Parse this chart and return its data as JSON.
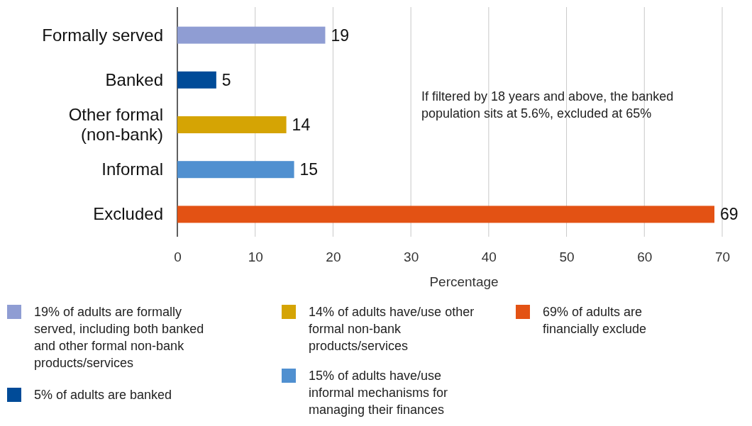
{
  "chart_data": {
    "type": "bar",
    "orientation": "horizontal",
    "categories": [
      "Formally served",
      "Banked",
      "Other formal\n(non-bank)",
      "Informal",
      "Excluded"
    ],
    "series": [
      {
        "name": "19% of adults are formally served, including both banked and other formal non-bank products/services",
        "color": "#8f9dd3",
        "values": [
          19,
          null,
          null,
          null,
          null
        ]
      },
      {
        "name": "5% of adults are banked",
        "color": "#004b98",
        "values": [
          null,
          5,
          null,
          null,
          null
        ]
      },
      {
        "name": "14% of adults have/use other formal non-bank products/services",
        "color": "#d5a404",
        "values": [
          null,
          null,
          14,
          null,
          null
        ]
      },
      {
        "name": "15% of adults have/use informal mechanisms for managing their finances",
        "color": "#5090d0",
        "values": [
          null,
          null,
          null,
          15,
          null
        ]
      },
      {
        "name": "69% of adults are financially exclude",
        "color": "#e35214",
        "values": [
          null,
          null,
          null,
          null,
          69
        ]
      }
    ],
    "xlim": [
      0,
      70
    ],
    "xticks": [
      0,
      10,
      20,
      30,
      40,
      50,
      60,
      70
    ],
    "xlabel": "Percentage",
    "grid": "x",
    "data_labels": true,
    "legend": "bottom",
    "annotations": [
      "If filtered by 18 years and above, the banked population sits at 5.6%, excluded at 65%"
    ]
  }
}
